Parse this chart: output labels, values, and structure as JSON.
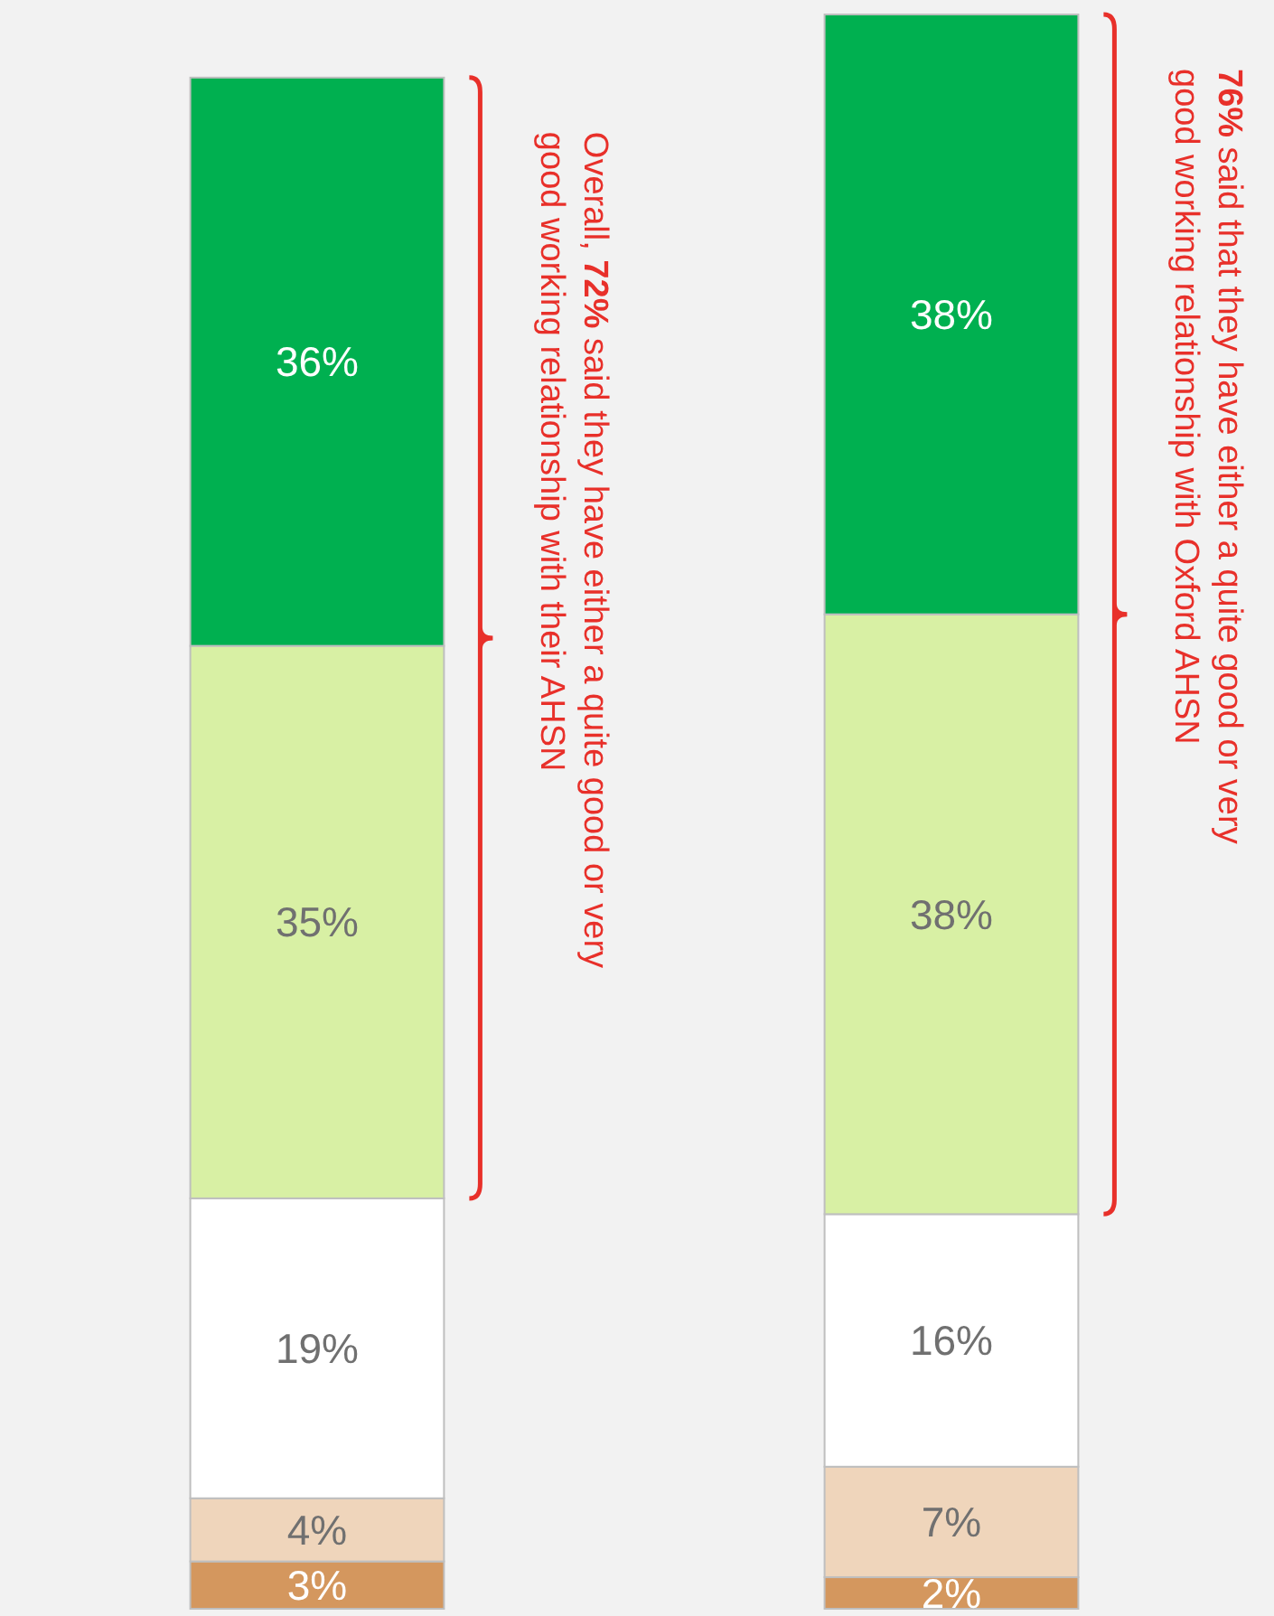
{
  "chart_data": {
    "type": "bar",
    "stacked": true,
    "categories": [
      null,
      null
    ],
    "ylim": [
      0,
      101
    ],
    "tick_labels": false,
    "series": [
      {
        "color": "#d4975e",
        "values": [
          3,
          2
        ],
        "value_labels": [
          "3%",
          "2%"
        ]
      },
      {
        "color": "#efd5bb",
        "values": [
          4,
          7
        ],
        "value_labels": [
          "4%",
          "7%"
        ]
      },
      {
        "color": "#ffffff",
        "values": [
          19,
          16
        ],
        "value_labels": [
          "19%",
          "16%"
        ]
      },
      {
        "color": "#d8f0a4",
        "values": [
          35,
          38
        ],
        "value_labels": [
          "35%",
          "38%"
        ]
      },
      {
        "color": "#00b050",
        "values": [
          36,
          38
        ],
        "value_labels": [
          "36%",
          "38%"
        ]
      }
    ],
    "annotations": [
      "Overall, 72% said they have either a quite good or very good working relationship with their AHSN",
      "76% said that they have either a quite good or very good working relationship with Oxford AHSN"
    ]
  }
}
